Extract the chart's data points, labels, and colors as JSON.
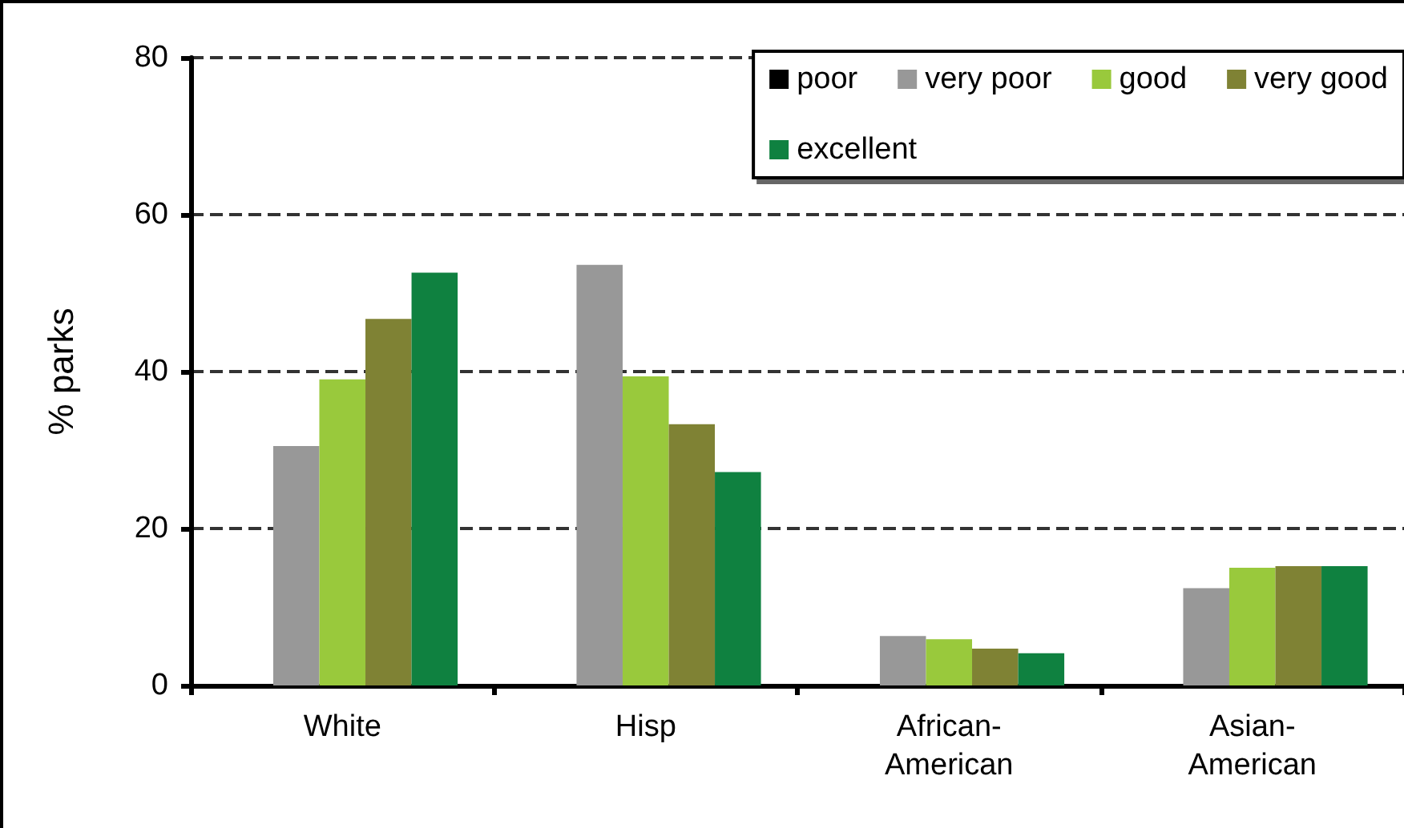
{
  "chart_data": {
    "type": "bar",
    "ylabel": "% parks",
    "categories": [
      "White",
      "Hisp",
      "African-American",
      "Asian-American"
    ],
    "series": [
      {
        "name": "poor",
        "color": "#000000",
        "values": [
          0,
          0,
          0,
          0
        ]
      },
      {
        "name": "very poor",
        "color": "#989898",
        "values": [
          30.5,
          53.6,
          6.3,
          12.4
        ]
      },
      {
        "name": "good",
        "color": "#99c93c",
        "values": [
          39.0,
          39.4,
          5.9,
          15.0
        ]
      },
      {
        "name": "very good",
        "color": "#7f8234",
        "values": [
          46.7,
          33.3,
          4.7,
          15.2
        ]
      },
      {
        "name": "excellent",
        "color": "#0f8140",
        "values": [
          52.6,
          27.2,
          4.1,
          15.2
        ]
      }
    ],
    "ylim": [
      0,
      80
    ],
    "yticks": [
      0,
      20,
      40,
      60,
      80
    ],
    "grid": "y",
    "legend": "top right"
  }
}
